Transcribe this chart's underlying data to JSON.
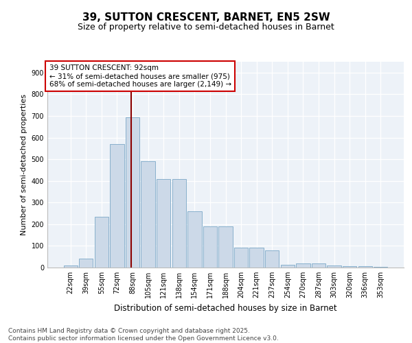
{
  "title_line1": "39, SUTTON CRESCENT, BARNET, EN5 2SW",
  "title_line2": "Size of property relative to semi-detached houses in Barnet",
  "xlabel": "Distribution of semi-detached houses by size in Barnet",
  "ylabel": "Number of semi-detached properties",
  "categories": [
    "22sqm",
    "39sqm",
    "55sqm",
    "72sqm",
    "88sqm",
    "105sqm",
    "121sqm",
    "138sqm",
    "154sqm",
    "171sqm",
    "188sqm",
    "204sqm",
    "221sqm",
    "237sqm",
    "254sqm",
    "270sqm",
    "287sqm",
    "303sqm",
    "320sqm",
    "336sqm",
    "353sqm"
  ],
  "values": [
    8,
    42,
    235,
    570,
    695,
    490,
    410,
    410,
    260,
    190,
    190,
    93,
    93,
    80,
    13,
    18,
    18,
    11,
    5,
    5,
    3
  ],
  "bar_color": "#ccd9e8",
  "bar_edge_color": "#7aa8c7",
  "vline_color": "#8b0000",
  "annotation_text": "39 SUTTON CRESCENT: 92sqm\n← 31% of semi-detached houses are smaller (975)\n68% of semi-detached houses are larger (2,149) →",
  "annotation_box_facecolor": "#ffffff",
  "annotation_box_edgecolor": "#cc0000",
  "ylim": [
    0,
    950
  ],
  "yticks": [
    0,
    100,
    200,
    300,
    400,
    500,
    600,
    700,
    800,
    900
  ],
  "background_color": "#edf2f8",
  "footer_text": "Contains HM Land Registry data © Crown copyright and database right 2025.\nContains public sector information licensed under the Open Government Licence v3.0.",
  "title_fontsize": 11,
  "subtitle_fontsize": 9,
  "tick_fontsize": 7,
  "ylabel_fontsize": 8,
  "xlabel_fontsize": 8.5,
  "footer_fontsize": 6.5
}
